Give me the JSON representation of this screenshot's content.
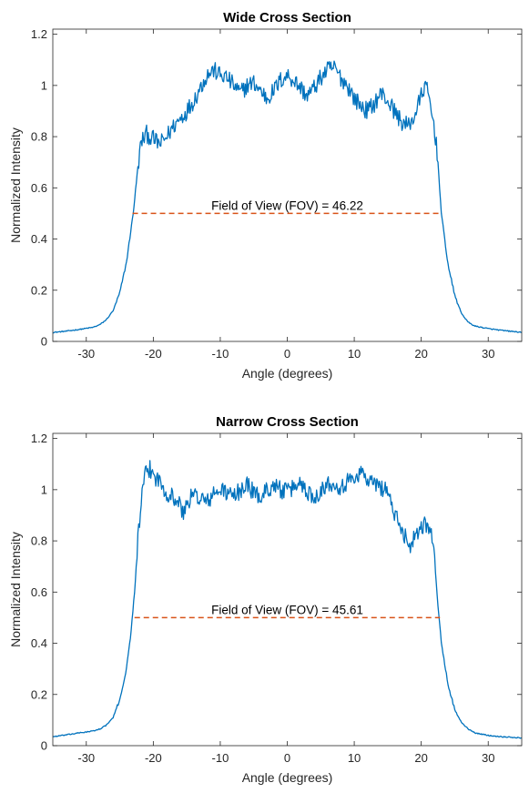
{
  "chart_data": [
    {
      "type": "line",
      "title": "Wide Cross Section",
      "xlabel": "Angle (degrees)",
      "ylabel": "Normalized Intensity",
      "xlim": [
        -35,
        35
      ],
      "ylim": [
        0,
        1.22
      ],
      "xticks": [
        -30,
        -20,
        -10,
        0,
        10,
        20,
        30
      ],
      "yticks": [
        0,
        0.2,
        0.4,
        0.6,
        0.8,
        1,
        1.2
      ],
      "grid": false,
      "series": [
        {
          "color": "#0072BD",
          "points": [
            [
              -35,
              0.035
            ],
            [
              -33,
              0.04
            ],
            [
              -31,
              0.047
            ],
            [
              -29,
              0.055
            ],
            [
              -28,
              0.065
            ],
            [
              -27,
              0.085
            ],
            [
              -26,
              0.12
            ],
            [
              -25,
              0.19
            ],
            [
              -24,
              0.31
            ],
            [
              -23,
              0.5
            ],
            [
              -22.3,
              0.68
            ],
            [
              -21.8,
              0.78
            ],
            [
              -21,
              0.81
            ],
            [
              -20,
              0.79
            ],
            [
              -19,
              0.77
            ],
            [
              -18,
              0.8
            ],
            [
              -17,
              0.84
            ],
            [
              -16,
              0.87
            ],
            [
              -15,
              0.9
            ],
            [
              -14,
              0.94
            ],
            [
              -13,
              0.99
            ],
            [
              -12,
              1.04
            ],
            [
              -11,
              1.06
            ],
            [
              -10,
              1.04
            ],
            [
              -9,
              1.03
            ],
            [
              -8,
              1.0
            ],
            [
              -7,
              0.97
            ],
            [
              -6,
              1.0
            ],
            [
              -5,
              1.01
            ],
            [
              -4,
              0.98
            ],
            [
              -3,
              0.95
            ],
            [
              -2,
              0.98
            ],
            [
              -1,
              1.02
            ],
            [
              0,
              1.04
            ],
            [
              1,
              1.02
            ],
            [
              2,
              0.99
            ],
            [
              3,
              0.96
            ],
            [
              4,
              0.99
            ],
            [
              5,
              1.03
            ],
            [
              6,
              1.06
            ],
            [
              7,
              1.07
            ],
            [
              8,
              1.03
            ],
            [
              9,
              1.0
            ],
            [
              10,
              0.95
            ],
            [
              11,
              0.92
            ],
            [
              12,
              0.9
            ],
            [
              13,
              0.93
            ],
            [
              14,
              0.97
            ],
            [
              15,
              0.94
            ],
            [
              16,
              0.9
            ],
            [
              17,
              0.86
            ],
            [
              18,
              0.84
            ],
            [
              19,
              0.88
            ],
            [
              20,
              0.96
            ],
            [
              20.5,
              1.0
            ],
            [
              21,
              0.97
            ],
            [
              21.5,
              0.9
            ],
            [
              22,
              0.83
            ],
            [
              22.5,
              0.7
            ],
            [
              23,
              0.5
            ],
            [
              24,
              0.3
            ],
            [
              25,
              0.18
            ],
            [
              26,
              0.11
            ],
            [
              27,
              0.075
            ],
            [
              28,
              0.06
            ],
            [
              30,
              0.05
            ],
            [
              32,
              0.043
            ],
            [
              34,
              0.038
            ],
            [
              35,
              0.035
            ]
          ]
        }
      ],
      "annotation": {
        "text": "Field of View (FOV) = 46.22",
        "line_x": [
          -23.1,
          23.1
        ],
        "line_y": 0.5,
        "color": "#D95319",
        "text_x": 0,
        "text_y": 0.5
      }
    },
    {
      "type": "line",
      "title": "Narrow Cross Section",
      "xlabel": "Angle (degrees)",
      "ylabel": "Normalized Intensity",
      "xlim": [
        -35,
        35
      ],
      "ylim": [
        0,
        1.22
      ],
      "xticks": [
        -30,
        -20,
        -10,
        0,
        10,
        20,
        30
      ],
      "yticks": [
        0,
        0.2,
        0.4,
        0.6,
        0.8,
        1,
        1.2
      ],
      "grid": false,
      "series": [
        {
          "color": "#0072BD",
          "points": [
            [
              -35,
              0.035
            ],
            [
              -33,
              0.042
            ],
            [
              -31,
              0.05
            ],
            [
              -29,
              0.057
            ],
            [
              -28,
              0.065
            ],
            [
              -27,
              0.08
            ],
            [
              -26,
              0.11
            ],
            [
              -25,
              0.18
            ],
            [
              -24,
              0.3
            ],
            [
              -23.3,
              0.45
            ],
            [
              -22.8,
              0.6
            ],
            [
              -22.3,
              0.8
            ],
            [
              -21.8,
              0.95
            ],
            [
              -21.3,
              1.05
            ],
            [
              -20.5,
              1.08
            ],
            [
              -20,
              1.06
            ],
            [
              -19,
              1.03
            ],
            [
              -18,
              0.99
            ],
            [
              -17,
              0.97
            ],
            [
              -16,
              0.94
            ],
            [
              -15.5,
              0.9
            ],
            [
              -15,
              0.95
            ],
            [
              -14,
              0.98
            ],
            [
              -13,
              0.97
            ],
            [
              -12,
              0.95
            ],
            [
              -11,
              0.98
            ],
            [
              -10,
              1.0
            ],
            [
              -9,
              0.99
            ],
            [
              -8,
              0.97
            ],
            [
              -7,
              1.0
            ],
            [
              -6,
              1.02
            ],
            [
              -5,
              0.99
            ],
            [
              -4,
              0.97
            ],
            [
              -3,
              1.0
            ],
            [
              -2,
              1.02
            ],
            [
              -1,
              1.0
            ],
            [
              0,
              0.99
            ],
            [
              1,
              1.01
            ],
            [
              2,
              1.03
            ],
            [
              3,
              0.99
            ],
            [
              4,
              0.97
            ],
            [
              5,
              1.0
            ],
            [
              6,
              1.02
            ],
            [
              7,
              1.03
            ],
            [
              8,
              1.01
            ],
            [
              9,
              1.03
            ],
            [
              10,
              1.05
            ],
            [
              11,
              1.07
            ],
            [
              12,
              1.04
            ],
            [
              13,
              1.02
            ],
            [
              14,
              1.01
            ],
            [
              15,
              1.0
            ],
            [
              15.5,
              0.95
            ],
            [
              16,
              0.9
            ],
            [
              17,
              0.85
            ],
            [
              18,
              0.8
            ],
            [
              18.5,
              0.78
            ],
            [
              19,
              0.82
            ],
            [
              20,
              0.86
            ],
            [
              21,
              0.87
            ],
            [
              21.5,
              0.83
            ],
            [
              22,
              0.72
            ],
            [
              22.5,
              0.55
            ],
            [
              23,
              0.4
            ],
            [
              24,
              0.24
            ],
            [
              25,
              0.14
            ],
            [
              26,
              0.09
            ],
            [
              27,
              0.065
            ],
            [
              28,
              0.05
            ],
            [
              30,
              0.04
            ],
            [
              32,
              0.035
            ],
            [
              35,
              0.03
            ]
          ]
        }
      ],
      "annotation": {
        "text": "Field of View (FOV) = 45.61",
        "line_x": [
          -22.8,
          22.8
        ],
        "line_y": 0.5,
        "color": "#D95319",
        "text_x": 0,
        "text_y": 0.5
      }
    }
  ]
}
